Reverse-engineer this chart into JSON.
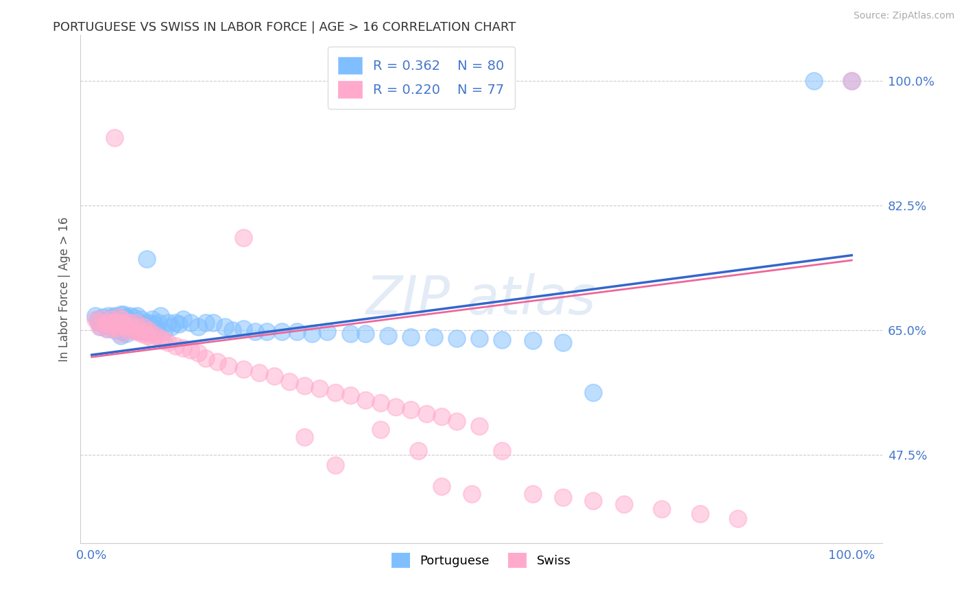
{
  "title": "PORTUGUESE VS SWISS IN LABOR FORCE | AGE > 16 CORRELATION CHART",
  "source": "Source: ZipAtlas.com",
  "ylabel": "In Labor Force | Age > 16",
  "blue_R": 0.362,
  "blue_N": 80,
  "pink_R": 0.22,
  "pink_N": 77,
  "blue_color": "#7fbfff",
  "pink_color": "#ffaacc",
  "blue_line_color": "#3366cc",
  "pink_line_color": "#ee6699",
  "title_color": "#333333",
  "axis_label_color": "#555555",
  "tick_color": "#4477cc",
  "background_color": "#ffffff",
  "grid_color": "#cccccc",
  "ytick_values": [
    0.475,
    0.65,
    0.825,
    1.0
  ],
  "ytick_labels": [
    "47.5%",
    "65.0%",
    "82.5%",
    "100.0%"
  ],
  "blue_scatter_x": [
    0.005,
    0.008,
    0.01,
    0.012,
    0.015,
    0.015,
    0.018,
    0.02,
    0.022,
    0.022,
    0.025,
    0.025,
    0.028,
    0.03,
    0.03,
    0.032,
    0.035,
    0.035,
    0.038,
    0.038,
    0.04,
    0.04,
    0.042,
    0.042,
    0.045,
    0.045,
    0.048,
    0.05,
    0.05,
    0.052,
    0.055,
    0.055,
    0.058,
    0.06,
    0.06,
    0.062,
    0.065,
    0.065,
    0.068,
    0.07,
    0.072,
    0.075,
    0.078,
    0.08,
    0.082,
    0.085,
    0.088,
    0.09,
    0.095,
    0.1,
    0.105,
    0.11,
    0.115,
    0.12,
    0.13,
    0.14,
    0.15,
    0.16,
    0.175,
    0.185,
    0.2,
    0.215,
    0.23,
    0.25,
    0.27,
    0.29,
    0.31,
    0.34,
    0.36,
    0.39,
    0.42,
    0.45,
    0.48,
    0.51,
    0.54,
    0.58,
    0.62,
    0.66,
    0.95,
    1.0
  ],
  "blue_scatter_y": [
    0.67,
    0.665,
    0.66,
    0.655,
    0.668,
    0.662,
    0.658,
    0.652,
    0.665,
    0.67,
    0.66,
    0.655,
    0.668,
    0.65,
    0.67,
    0.66,
    0.655,
    0.668,
    0.642,
    0.672,
    0.648,
    0.665,
    0.658,
    0.672,
    0.645,
    0.668,
    0.66,
    0.652,
    0.67,
    0.66,
    0.655,
    0.668,
    0.65,
    0.66,
    0.67,
    0.655,
    0.648,
    0.665,
    0.658,
    0.66,
    0.75,
    0.66,
    0.648,
    0.665,
    0.658,
    0.652,
    0.66,
    0.67,
    0.648,
    0.66,
    0.655,
    0.66,
    0.658,
    0.665,
    0.66,
    0.655,
    0.66,
    0.66,
    0.655,
    0.65,
    0.652,
    0.648,
    0.648,
    0.648,
    0.648,
    0.645,
    0.648,
    0.645,
    0.645,
    0.642,
    0.64,
    0.64,
    0.638,
    0.638,
    0.636,
    0.635,
    0.632,
    0.562,
    1.0,
    1.0
  ],
  "pink_scatter_x": [
    0.005,
    0.008,
    0.01,
    0.015,
    0.018,
    0.02,
    0.022,
    0.025,
    0.025,
    0.028,
    0.03,
    0.032,
    0.035,
    0.035,
    0.038,
    0.04,
    0.04,
    0.042,
    0.045,
    0.048,
    0.05,
    0.052,
    0.055,
    0.058,
    0.06,
    0.062,
    0.065,
    0.068,
    0.07,
    0.072,
    0.075,
    0.078,
    0.08,
    0.085,
    0.09,
    0.095,
    0.1,
    0.11,
    0.12,
    0.13,
    0.14,
    0.15,
    0.165,
    0.18,
    0.2,
    0.22,
    0.24,
    0.26,
    0.28,
    0.3,
    0.32,
    0.34,
    0.36,
    0.38,
    0.4,
    0.42,
    0.44,
    0.46,
    0.48,
    0.51,
    0.03,
    0.2,
    0.28,
    0.32,
    0.38,
    0.43,
    0.46,
    0.5,
    0.54,
    0.58,
    0.62,
    0.66,
    0.7,
    0.75,
    0.8,
    0.85,
    1.0
  ],
  "pink_scatter_y": [
    0.665,
    0.66,
    0.655,
    0.665,
    0.658,
    0.652,
    0.66,
    0.655,
    0.665,
    0.66,
    0.652,
    0.66,
    0.655,
    0.668,
    0.645,
    0.66,
    0.665,
    0.658,
    0.655,
    0.65,
    0.66,
    0.655,
    0.648,
    0.66,
    0.655,
    0.648,
    0.645,
    0.655,
    0.648,
    0.642,
    0.65,
    0.645,
    0.638,
    0.642,
    0.638,
    0.635,
    0.632,
    0.628,
    0.625,
    0.622,
    0.618,
    0.61,
    0.605,
    0.6,
    0.595,
    0.59,
    0.585,
    0.578,
    0.572,
    0.568,
    0.562,
    0.558,
    0.552,
    0.548,
    0.542,
    0.538,
    0.532,
    0.528,
    0.522,
    0.515,
    0.92,
    0.78,
    0.5,
    0.46,
    0.51,
    0.48,
    0.43,
    0.42,
    0.48,
    0.42,
    0.415,
    0.41,
    0.405,
    0.398,
    0.392,
    0.385,
    1.0
  ]
}
